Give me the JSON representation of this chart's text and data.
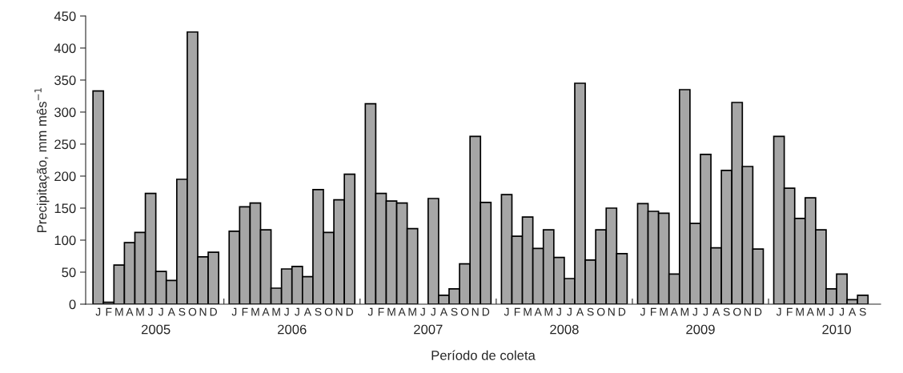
{
  "chart_data": {
    "type": "bar",
    "xlabel": "Período de coleta",
    "ylabel": "Precipitação, mm mês$^{−1}$",
    "categories": [
      "J",
      "F",
      "M",
      "A",
      "M",
      "J",
      "J",
      "A",
      "S",
      "O",
      "N",
      "D",
      null,
      "J",
      "F",
      "M",
      "A",
      "M",
      "J",
      "J",
      "A",
      "S",
      "O",
      "N",
      "D",
      null,
      "J",
      "F",
      "M",
      "A",
      "M",
      "J",
      "J",
      "A",
      "S",
      "O",
      "N",
      "D",
      null,
      "J",
      "F",
      "M",
      "A",
      "M",
      "J",
      "J",
      "A",
      "S",
      "O",
      "N",
      "D",
      null,
      "J",
      "F",
      "M",
      "A",
      "M",
      "J",
      "J",
      "A",
      "S",
      "O",
      "N",
      "D",
      null,
      "J",
      "F",
      "M",
      "A",
      "M",
      "J",
      "J",
      "A",
      "S"
    ],
    "values": [
      333,
      3,
      61,
      96,
      112,
      173,
      51,
      37,
      195,
      425,
      74,
      81,
      null,
      114,
      152,
      158,
      116,
      25,
      55,
      59,
      43,
      179,
      112,
      163,
      203,
      null,
      313,
      173,
      161,
      158,
      118,
      null,
      165,
      14,
      24,
      63,
      262,
      159,
      null,
      171,
      106,
      136,
      87,
      116,
      73,
      40,
      345,
      69,
      116,
      150,
      79,
      null,
      157,
      145,
      142,
      47,
      335,
      126,
      234,
      88,
      209,
      315,
      215,
      86,
      null,
      262,
      181,
      134,
      166,
      116,
      24,
      47,
      7,
      14
    ],
    "color": "#a6a6a6",
    "ylim": [
      0,
      450
    ],
    "yticks": [
      0,
      50,
      100,
      150,
      200,
      250,
      300,
      350,
      400,
      450
    ],
    "grid": false,
    "annotations": [
      "2005",
      "2006",
      "2007",
      "2008",
      "2009",
      "2010"
    ]
  }
}
